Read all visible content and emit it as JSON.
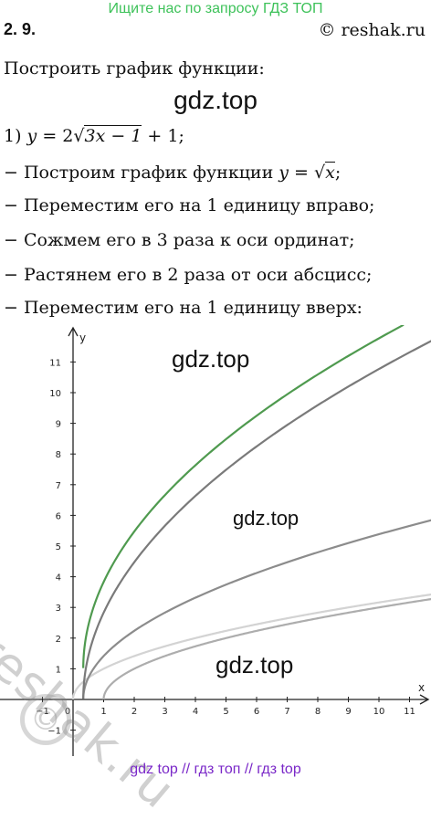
{
  "header": {
    "search_banner": "Ищите нас по запросу ГДЗ ТОП",
    "problem_number": "2. 9.",
    "source_site": "© reshak.ru"
  },
  "content": {
    "task_title": "Построить график функции:",
    "watermark_top": "gdz.top",
    "equation": {
      "prefix": "1) ",
      "y": "y",
      "eq": " = 2",
      "radicand": "3x − 1",
      "suffix": " + 1;"
    },
    "steps": [
      {
        "text": "− Построим график функции ",
        "math_y": "y",
        "math_eq": " = ",
        "radicand": "x",
        "tail": ";"
      },
      {
        "text": "− Переместим его на 1 единицу вправо;"
      },
      {
        "text": "− Сожмем его в 3 раза к оси ординат;"
      },
      {
        "text": "− Растянем его в 2 раза от оси абсцисс;"
      },
      {
        "text": "− Переместим его на 1 единицу вверх:"
      }
    ]
  },
  "graph": {
    "watermarks": [
      "gdz.top",
      "gdz.top",
      "gdz.top"
    ],
    "reshak_watermark": "reshak.ru",
    "copyright_symbol": "©"
  },
  "chart_data": {
    "type": "line",
    "xlabel": "x",
    "ylabel": "y",
    "xlim": [
      -1.7,
      12.0
    ],
    "ylim": [
      -2.3,
      12.5
    ],
    "x_ticks": [
      "−1",
      "0",
      "1",
      "2",
      "3",
      "4",
      "5",
      "6",
      "7",
      "8",
      "9",
      "10",
      "11"
    ],
    "y_ticks": [
      "−1",
      "1",
      "2",
      "3",
      "4",
      "5",
      "6",
      "7",
      "8",
      "9",
      "10",
      "11"
    ],
    "grid": false,
    "series": [
      {
        "formula": "sqrt(x)",
        "x_start": 0,
        "color": "#d3d3d3",
        "points": [
          [
            0,
            0
          ],
          [
            1,
            1
          ],
          [
            4,
            2
          ],
          [
            9,
            3
          ],
          [
            12,
            3.46
          ]
        ]
      },
      {
        "formula": "sqrt(x-1)",
        "x_start": 1,
        "color": "#adadad",
        "points": [
          [
            1,
            0
          ],
          [
            2,
            1
          ],
          [
            5,
            2
          ],
          [
            10,
            3
          ],
          [
            12,
            3.32
          ]
        ]
      },
      {
        "formula": "sqrt(3x-1)",
        "x_start": 0.3333,
        "color": "#8c8c8c",
        "points": [
          [
            0.333,
            0
          ],
          [
            2,
            2.24
          ],
          [
            5,
            3.74
          ],
          [
            12,
            5.92
          ]
        ]
      },
      {
        "formula": "2*sqrt(3x-1)",
        "x_start": 0.3333,
        "color": "#7a7a7a",
        "points": [
          [
            0.333,
            0
          ],
          [
            2,
            4.47
          ],
          [
            5,
            7.48
          ],
          [
            12,
            11.83
          ]
        ]
      },
      {
        "formula": "2*sqrt(3x-1)+1",
        "x_start": 0.3333,
        "color": "#4f9a4f",
        "points": [
          [
            0.333,
            1
          ],
          [
            2,
            5.47
          ],
          [
            5,
            8.48
          ],
          [
            10,
            11.77
          ]
        ]
      }
    ]
  },
  "footer": {
    "link_1": "gdz top",
    "sep_1": " // ",
    "link_2": "гдз топ",
    "sep_2": " // ",
    "link_3": "гдз top"
  }
}
